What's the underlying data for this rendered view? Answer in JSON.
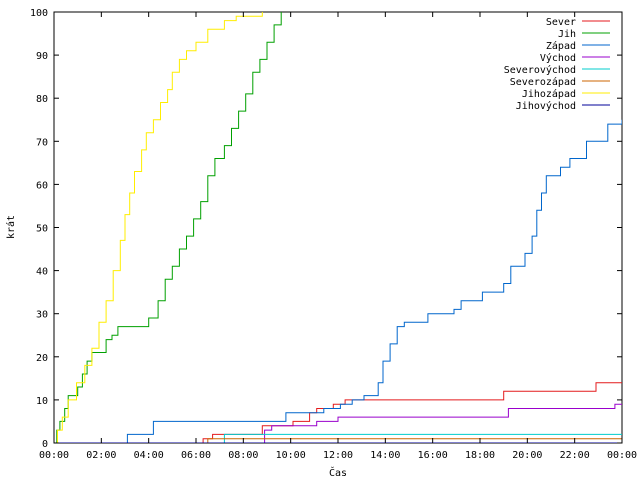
{
  "chart_data": {
    "type": "line",
    "title": "",
    "xlabel": "Čas",
    "ylabel": "krát",
    "ylim": [
      0,
      100
    ],
    "xlim": [
      "00:00",
      "24:00"
    ],
    "x_tick_labels": [
      "00:00",
      "02:00",
      "04:00",
      "06:00",
      "08:00",
      "10:00",
      "12:00",
      "14:00",
      "16:00",
      "18:00",
      "20:00",
      "22:00",
      "00:00"
    ],
    "y_tick_labels": [
      "0",
      "10",
      "20",
      "30",
      "40",
      "50",
      "60",
      "70",
      "80",
      "90",
      "100"
    ],
    "grid": false,
    "legend_position": "top-right",
    "step": true,
    "series": [
      {
        "name": "Sever",
        "color": "#e41a1c",
        "points": [
          [
            0,
            0
          ],
          [
            6.3,
            0
          ],
          [
            6.3,
            1
          ],
          [
            6.7,
            1
          ],
          [
            6.7,
            2
          ],
          [
            8.8,
            2
          ],
          [
            8.8,
            4
          ],
          [
            10.1,
            4
          ],
          [
            10.1,
            5
          ],
          [
            10.8,
            5
          ],
          [
            10.8,
            7
          ],
          [
            11.1,
            7
          ],
          [
            11.1,
            8
          ],
          [
            11.8,
            8
          ],
          [
            11.8,
            9
          ],
          [
            12.3,
            9
          ],
          [
            12.3,
            10
          ],
          [
            19,
            10
          ],
          [
            19,
            12
          ],
          [
            22.9,
            12
          ],
          [
            22.9,
            14
          ],
          [
            24,
            14
          ]
        ]
      },
      {
        "name": "Jih",
        "color": "#00a000",
        "points": [
          [
            0,
            0
          ],
          [
            0.12,
            0
          ],
          [
            0.12,
            3
          ],
          [
            0.25,
            3
          ],
          [
            0.25,
            5
          ],
          [
            0.45,
            5
          ],
          [
            0.45,
            8
          ],
          [
            0.6,
            8
          ],
          [
            0.6,
            11
          ],
          [
            1.0,
            11
          ],
          [
            1.0,
            13
          ],
          [
            1.2,
            13
          ],
          [
            1.2,
            16
          ],
          [
            1.4,
            16
          ],
          [
            1.4,
            19
          ],
          [
            1.6,
            19
          ],
          [
            1.6,
            21
          ],
          [
            2.2,
            21
          ],
          [
            2.2,
            24
          ],
          [
            2.45,
            24
          ],
          [
            2.45,
            25
          ],
          [
            2.7,
            25
          ],
          [
            2.7,
            27
          ],
          [
            4.0,
            27
          ],
          [
            4.0,
            29
          ],
          [
            4.4,
            29
          ],
          [
            4.4,
            33
          ],
          [
            4.7,
            33
          ],
          [
            4.7,
            38
          ],
          [
            5.0,
            38
          ],
          [
            5.0,
            41
          ],
          [
            5.3,
            41
          ],
          [
            5.3,
            45
          ],
          [
            5.6,
            45
          ],
          [
            5.6,
            48
          ],
          [
            5.9,
            48
          ],
          [
            5.9,
            52
          ],
          [
            6.2,
            52
          ],
          [
            6.2,
            56
          ],
          [
            6.5,
            56
          ],
          [
            6.5,
            62
          ],
          [
            6.8,
            62
          ],
          [
            6.8,
            66
          ],
          [
            7.2,
            66
          ],
          [
            7.2,
            69
          ],
          [
            7.5,
            69
          ],
          [
            7.5,
            73
          ],
          [
            7.8,
            73
          ],
          [
            7.8,
            77
          ],
          [
            8.1,
            77
          ],
          [
            8.1,
            81
          ],
          [
            8.4,
            81
          ],
          [
            8.4,
            86
          ],
          [
            8.7,
            86
          ],
          [
            8.7,
            89
          ],
          [
            9.0,
            89
          ],
          [
            9.0,
            93
          ],
          [
            9.3,
            93
          ],
          [
            9.3,
            97
          ],
          [
            9.6,
            97
          ],
          [
            9.6,
            100
          ]
        ]
      },
      {
        "name": "Západ",
        "color": "#0066cc",
        "points": [
          [
            0,
            0
          ],
          [
            3.1,
            0
          ],
          [
            3.1,
            2
          ],
          [
            4.2,
            2
          ],
          [
            4.2,
            5
          ],
          [
            9.8,
            5
          ],
          [
            9.8,
            7
          ],
          [
            11.4,
            7
          ],
          [
            11.4,
            8
          ],
          [
            12.1,
            8
          ],
          [
            12.1,
            9
          ],
          [
            12.6,
            9
          ],
          [
            12.6,
            10
          ],
          [
            13.1,
            10
          ],
          [
            13.1,
            11
          ],
          [
            13.7,
            11
          ],
          [
            13.7,
            14
          ],
          [
            13.9,
            14
          ],
          [
            13.9,
            19
          ],
          [
            14.2,
            19
          ],
          [
            14.2,
            23
          ],
          [
            14.5,
            23
          ],
          [
            14.5,
            27
          ],
          [
            14.8,
            27
          ],
          [
            14.8,
            28
          ],
          [
            15.8,
            28
          ],
          [
            15.8,
            30
          ],
          [
            16.9,
            30
          ],
          [
            16.9,
            31
          ],
          [
            17.2,
            31
          ],
          [
            17.2,
            33
          ],
          [
            18.1,
            33
          ],
          [
            18.1,
            35
          ],
          [
            19.0,
            35
          ],
          [
            19.0,
            37
          ],
          [
            19.3,
            37
          ],
          [
            19.3,
            41
          ],
          [
            19.9,
            41
          ],
          [
            19.9,
            44
          ],
          [
            20.2,
            44
          ],
          [
            20.2,
            48
          ],
          [
            20.4,
            48
          ],
          [
            20.4,
            54
          ],
          [
            20.6,
            54
          ],
          [
            20.6,
            58
          ],
          [
            20.8,
            58
          ],
          [
            20.8,
            62
          ],
          [
            21.4,
            62
          ],
          [
            21.4,
            64
          ],
          [
            21.8,
            64
          ],
          [
            21.8,
            66
          ],
          [
            22.5,
            66
          ],
          [
            22.5,
            70
          ],
          [
            23.4,
            70
          ],
          [
            23.4,
            74
          ],
          [
            24,
            74
          ],
          [
            24,
            75
          ]
        ]
      },
      {
        "name": "Východ",
        "color": "#9900cc",
        "points": [
          [
            0,
            0
          ],
          [
            8.9,
            0
          ],
          [
            8.9,
            3
          ],
          [
            9.2,
            3
          ],
          [
            9.2,
            4
          ],
          [
            11.1,
            4
          ],
          [
            11.1,
            5
          ],
          [
            12.0,
            5
          ],
          [
            12.0,
            6
          ],
          [
            19.2,
            6
          ],
          [
            19.2,
            8
          ],
          [
            23.7,
            8
          ],
          [
            23.7,
            9
          ],
          [
            24,
            9
          ]
        ]
      },
      {
        "name": "Severovýchod",
        "color": "#00cccc",
        "points": [
          [
            0,
            0
          ],
          [
            7.2,
            0
          ],
          [
            7.2,
            2
          ],
          [
            24,
            2
          ]
        ]
      },
      {
        "name": "Severozápad",
        "color": "#cc6600",
        "points": [
          [
            0,
            0
          ],
          [
            6.5,
            0
          ],
          [
            6.5,
            1
          ],
          [
            24,
            1
          ]
        ]
      },
      {
        "name": "Jihozápad",
        "color": "#ffee00",
        "points": [
          [
            0,
            0
          ],
          [
            0.15,
            0
          ],
          [
            0.15,
            3
          ],
          [
            0.35,
            3
          ],
          [
            0.35,
            6
          ],
          [
            0.6,
            6
          ],
          [
            0.6,
            10
          ],
          [
            0.95,
            10
          ],
          [
            0.95,
            14
          ],
          [
            1.3,
            14
          ],
          [
            1.3,
            18
          ],
          [
            1.6,
            18
          ],
          [
            1.6,
            22
          ],
          [
            1.9,
            22
          ],
          [
            1.9,
            28
          ],
          [
            2.2,
            28
          ],
          [
            2.2,
            33
          ],
          [
            2.5,
            33
          ],
          [
            2.5,
            40
          ],
          [
            2.8,
            40
          ],
          [
            2.8,
            47
          ],
          [
            3.0,
            47
          ],
          [
            3.0,
            53
          ],
          [
            3.2,
            53
          ],
          [
            3.2,
            58
          ],
          [
            3.4,
            58
          ],
          [
            3.4,
            63
          ],
          [
            3.7,
            63
          ],
          [
            3.7,
            68
          ],
          [
            3.9,
            68
          ],
          [
            3.9,
            72
          ],
          [
            4.2,
            72
          ],
          [
            4.2,
            75
          ],
          [
            4.5,
            75
          ],
          [
            4.5,
            79
          ],
          [
            4.8,
            79
          ],
          [
            4.8,
            82
          ],
          [
            5.0,
            82
          ],
          [
            5.0,
            86
          ],
          [
            5.3,
            86
          ],
          [
            5.3,
            89
          ],
          [
            5.6,
            89
          ],
          [
            5.6,
            91
          ],
          [
            6.0,
            91
          ],
          [
            6.0,
            93
          ],
          [
            6.5,
            93
          ],
          [
            6.5,
            96
          ],
          [
            7.2,
            96
          ],
          [
            7.2,
            98
          ],
          [
            7.7,
            98
          ],
          [
            7.7,
            99
          ],
          [
            8.8,
            99
          ],
          [
            8.8,
            100
          ]
        ]
      },
      {
        "name": "Jihovýchod",
        "color": "#000099",
        "points": [
          [
            0,
            0
          ],
          [
            24,
            0
          ]
        ]
      }
    ]
  }
}
